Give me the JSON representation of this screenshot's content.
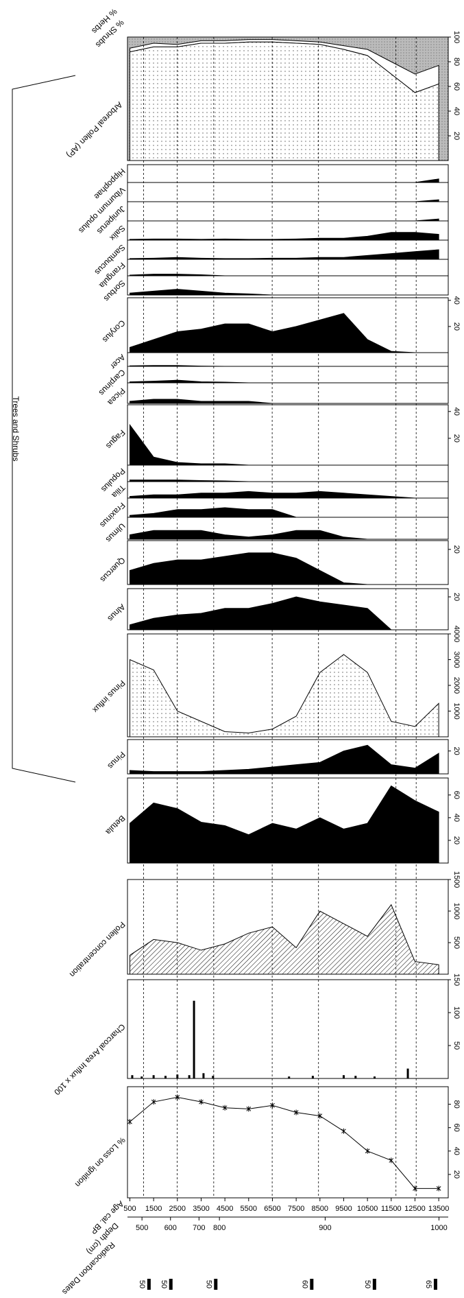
{
  "age_axis": {
    "label": "Age cal. BP",
    "xlim": [
      400,
      13900
    ],
    "xticks": [
      500,
      1500,
      2500,
      3500,
      4500,
      5500,
      6500,
      7500,
      8500,
      9500,
      10500,
      11500,
      12500,
      13500
    ],
    "x": [
      500,
      1500,
      2500,
      3500,
      4500,
      5500,
      6500,
      7500,
      8500,
      9500,
      10500,
      11500,
      12500,
      13500
    ]
  },
  "depth_axis": {
    "label": "Depth (cm)",
    "ticks": [
      500,
      600,
      700,
      800,
      900,
      1000
    ],
    "ages": [
      1010,
      2210,
      3410,
      4270,
      8720,
      13510
    ]
  },
  "radiocarbon": {
    "label": "Radiocarbon Dates",
    "ages": [
      1290,
      2210,
      4100,
      8140,
      10780,
      13350
    ],
    "labels": [
      "50",
      "50",
      "50",
      "60",
      "50",
      "65"
    ]
  },
  "zones": [
    1080,
    2490,
    4030,
    6490,
    8440,
    11700,
    12550
  ],
  "group_label": "Trees and Shrubs",
  "chart_data": [
    {
      "type": "line",
      "title": "% Loss on ignition",
      "values": [
        65,
        82,
        86,
        82,
        77,
        76,
        79,
        73,
        70,
        57,
        40,
        32,
        8,
        8
      ],
      "ylim": [
        0,
        95
      ],
      "yticks": [
        20,
        40,
        60,
        80
      ]
    },
    {
      "type": "bar",
      "title": "Charcoal Area Influx x 100",
      "x": [
        600,
        1000,
        1500,
        2000,
        2500,
        3000,
        3200,
        3600,
        4000,
        7200,
        8200,
        9500,
        10000,
        10800,
        12200
      ],
      "values": [
        5,
        3,
        5,
        4,
        6,
        5,
        118,
        8,
        4,
        3,
        4,
        5,
        4,
        3,
        15
      ],
      "ylim": [
        0,
        150
      ],
      "yticks": [
        50,
        100,
        150
      ]
    },
    {
      "type": "area",
      "fill": "hatch",
      "title": "Pollen concentration",
      "values": [
        300,
        550,
        500,
        380,
        480,
        650,
        750,
        420,
        1000,
        800,
        600,
        1100,
        200,
        150
      ],
      "ylim": [
        0,
        1500
      ],
      "yticks": [
        500,
        1000,
        1500
      ]
    },
    {
      "type": "area",
      "fill": "black",
      "title": "Betula",
      "values": [
        35,
        53,
        48,
        36,
        33,
        25,
        35,
        30,
        40,
        30,
        35,
        68,
        55,
        45
      ],
      "ylim": [
        0,
        75
      ],
      "yticks": [
        20,
        40,
        60
      ]
    },
    {
      "type": "area",
      "fill": "black",
      "title": "Pinus",
      "values": [
        3,
        2,
        2,
        2,
        3,
        4,
        6,
        8,
        10,
        20,
        25,
        8,
        5,
        18
      ],
      "ylim": [
        0,
        30
      ],
      "yticks": [
        20
      ]
    },
    {
      "type": "area",
      "fill": "dots",
      "title": "Pinus influx",
      "values": [
        3000,
        2600,
        1000,
        600,
        200,
        150,
        300,
        800,
        2500,
        3200,
        2500,
        600,
        400,
        1300
      ],
      "ylim": [
        0,
        4000
      ],
      "yticks": [
        1000,
        2000,
        3000,
        4000
      ]
    },
    {
      "type": "area",
      "fill": "black",
      "title": "Alnus",
      "values": [
        3,
        7,
        9,
        10,
        13,
        13,
        16,
        20,
        17,
        15,
        13,
        0,
        0,
        0
      ],
      "ylim": [
        0,
        25
      ],
      "yticks": [
        20
      ]
    },
    {
      "type": "area",
      "fill": "black",
      "title": "Quercus",
      "values": [
        8,
        12,
        14,
        14,
        16,
        18,
        18,
        15,
        8,
        1,
        0,
        0,
        0,
        0
      ],
      "ylim": [
        0,
        25
      ],
      "yticks": [
        20
      ]
    },
    {
      "type": "area",
      "fill": "black",
      "title": "Ulmus",
      "values": [
        1,
        2,
        2,
        2,
        1,
        0.5,
        1,
        2,
        2,
        0.5,
        0,
        0,
        0,
        0
      ],
      "ylim": [
        0,
        5
      ],
      "yticks": []
    },
    {
      "type": "area",
      "fill": "black",
      "title": "Fraxinus",
      "values": [
        0.5,
        1,
        2,
        2,
        2.5,
        2,
        2,
        0,
        0,
        0,
        0,
        0,
        0,
        0
      ],
      "ylim": [
        0,
        5
      ],
      "yticks": []
    },
    {
      "type": "area",
      "fill": "black",
      "title": "Tilia",
      "values": [
        0.5,
        1,
        1,
        1.5,
        1.5,
        2,
        1.5,
        1.5,
        2,
        1.5,
        1,
        0.5,
        0,
        0
      ],
      "ylim": [
        0,
        5
      ],
      "yticks": []
    },
    {
      "type": "area",
      "fill": "black",
      "title": "Populus",
      "values": [
        0.5,
        0.5,
        0.5,
        0.3,
        0.2,
        0,
        0,
        0,
        0,
        0,
        0,
        0,
        0,
        0
      ],
      "ylim": [
        0,
        5
      ],
      "yticks": []
    },
    {
      "type": "area",
      "fill": "black",
      "title": "Fagus",
      "values": [
        30,
        6,
        2,
        1,
        1,
        0,
        0,
        0,
        0,
        0,
        0,
        0,
        0,
        0
      ],
      "ylim": [
        0,
        45
      ],
      "yticks": [
        20,
        40
      ]
    },
    {
      "type": "area",
      "fill": "black",
      "title": "Picea",
      "values": [
        0.5,
        1,
        1,
        0.5,
        0.5,
        0.5,
        0,
        0,
        0,
        0,
        0,
        0,
        0,
        0
      ],
      "ylim": [
        0,
        5
      ],
      "yticks": []
    },
    {
      "type": "area",
      "fill": "black",
      "title": "Carpinus",
      "values": [
        0.3,
        0.5,
        0.8,
        0.3,
        0.2,
        0,
        0,
        0,
        0,
        0,
        0,
        0,
        0,
        0
      ],
      "ylim": [
        0,
        5
      ],
      "yticks": []
    },
    {
      "type": "area",
      "fill": "black",
      "title": "Acer",
      "values": [
        0.2,
        0.3,
        0.3,
        0.1,
        0,
        0,
        0,
        0,
        0,
        0,
        0,
        0,
        0,
        0
      ],
      "ylim": [
        0,
        5
      ],
      "yticks": []
    },
    {
      "type": "area",
      "fill": "black",
      "title": "Corylus",
      "values": [
        4,
        10,
        16,
        18,
        22,
        22,
        16,
        20,
        25,
        30,
        10,
        1,
        0,
        0
      ],
      "ylim": [
        0,
        42
      ],
      "yticks": [
        20,
        40
      ]
    },
    {
      "type": "area",
      "fill": "black",
      "title": "Sorbus",
      "values": [
        0.5,
        1,
        1.5,
        1,
        0.5,
        0.3,
        0,
        0,
        0,
        0,
        0,
        0,
        0,
        0
      ],
      "ylim": [
        0,
        5
      ],
      "yticks": []
    },
    {
      "type": "area",
      "fill": "black",
      "title": "Frangula",
      "values": [
        0.2,
        0.5,
        0.5,
        0.3,
        0,
        0,
        0,
        0,
        0,
        0,
        0,
        0,
        0,
        0
      ],
      "ylim": [
        0,
        5
      ],
      "yticks": []
    },
    {
      "type": "area",
      "fill": "black",
      "title": "Sambucus",
      "values": [
        0.2,
        0.3,
        0.5,
        0.3,
        0.2,
        0.2,
        0.3,
        0.3,
        0.5,
        0.5,
        1,
        1.5,
        2,
        2.5
      ],
      "ylim": [
        0,
        5
      ],
      "yticks": []
    },
    {
      "type": "area",
      "fill": "black",
      "title": "Salix",
      "values": [
        0.2,
        0.3,
        0.3,
        0.2,
        0.3,
        0.2,
        0.2,
        0.3,
        0.5,
        0.5,
        1,
        2,
        2,
        1.5
      ],
      "ylim": [
        0,
        5
      ],
      "yticks": []
    },
    {
      "type": "area",
      "fill": "black",
      "title": "Juniperus",
      "values": [
        0,
        0,
        0,
        0,
        0,
        0,
        0,
        0,
        0,
        0,
        0,
        0,
        0,
        0.5
      ],
      "ylim": [
        0,
        5
      ],
      "yticks": []
    },
    {
      "type": "area",
      "fill": "black",
      "title": "Viburnum opulus",
      "values": [
        0,
        0,
        0,
        0,
        0,
        0,
        0,
        0,
        0,
        0,
        0,
        0,
        0,
        0.5
      ],
      "ylim": [
        0,
        5
      ],
      "yticks": []
    },
    {
      "type": "area",
      "fill": "black",
      "title": "Hippophae",
      "values": [
        0,
        0,
        0,
        0,
        0,
        0,
        0,
        0,
        0,
        0,
        0,
        0,
        0,
        1
      ],
      "ylim": [
        0,
        5
      ],
      "yticks": []
    },
    {
      "type": "stacked_area",
      "title": "% Herbs",
      "ylim": [
        0,
        100
      ],
      "yticks": [
        20,
        40,
        60,
        80,
        100
      ],
      "series": [
        {
          "name": "Arboreal Pollen (AP)",
          "values": [
            88,
            92,
            92,
            95,
            95,
            96,
            96,
            95,
            94,
            90,
            85,
            70,
            55,
            62
          ]
        },
        {
          "name": "% Shrubs",
          "values": [
            3,
            3,
            2,
            2,
            2,
            2,
            2,
            2,
            2,
            3,
            5,
            10,
            15,
            15
          ]
        }
      ]
    }
  ]
}
